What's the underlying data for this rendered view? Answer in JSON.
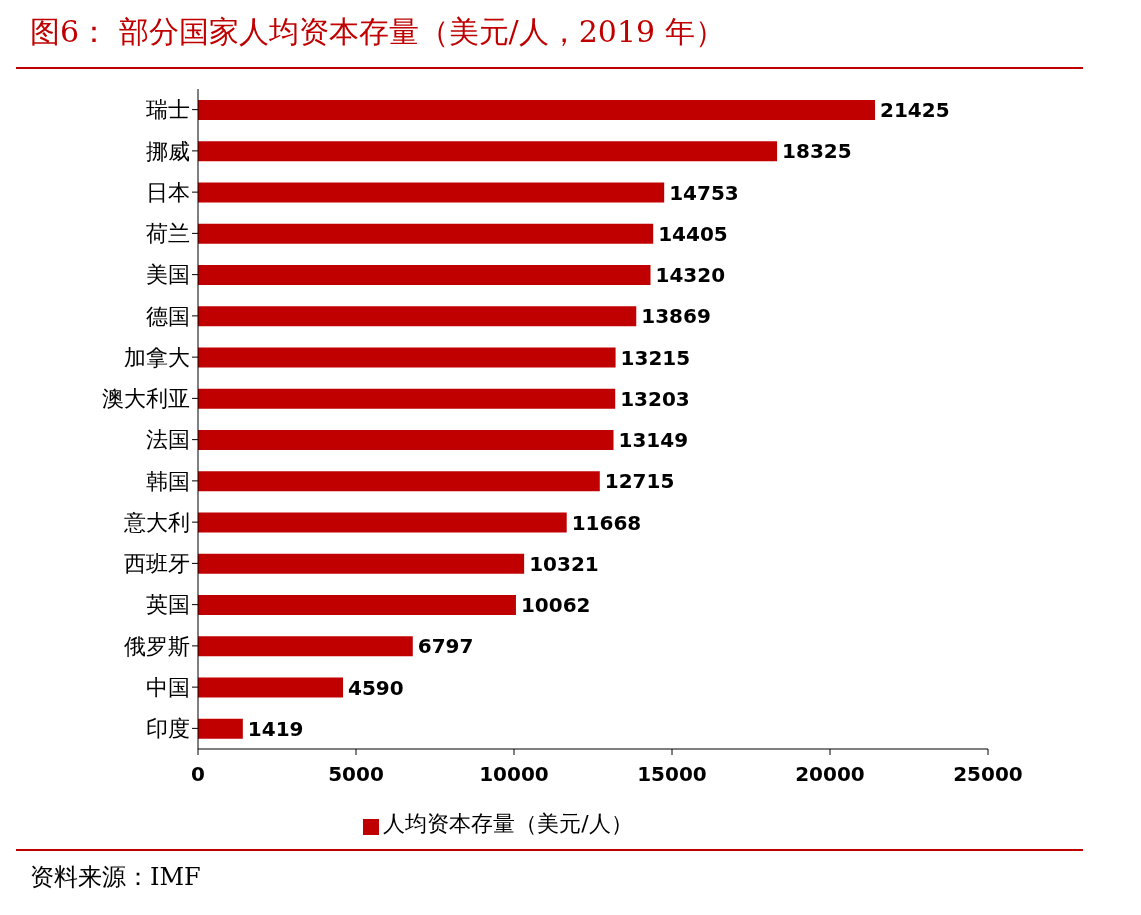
{
  "chart_data": {
    "type": "bar",
    "orientation": "horizontal",
    "title": "图6：  部分国家人均资本存量（美元/人，2019 年）",
    "categories": [
      "瑞士",
      "挪威",
      "日本",
      "荷兰",
      "美国",
      "德国",
      "加拿大",
      "澳大利亚",
      "法国",
      "韩国",
      "意大利",
      "西班牙",
      "英国",
      "俄罗斯",
      "中国",
      "印度"
    ],
    "series": [
      {
        "name": "人均资本存量（美元/人）",
        "color": "#c00000",
        "values": [
          21425,
          18325,
          14753,
          14405,
          14320,
          13869,
          13215,
          13203,
          13149,
          12715,
          11668,
          10321,
          10062,
          6797,
          4590,
          1419
        ]
      }
    ],
    "xlim": [
      0,
      25000
    ],
    "xticks": [
      0,
      5000,
      10000,
      15000,
      20000,
      25000
    ],
    "data_labels": true,
    "legend": "bottom",
    "grid": false,
    "annotations": [
      "资料来源：IMF"
    ]
  }
}
